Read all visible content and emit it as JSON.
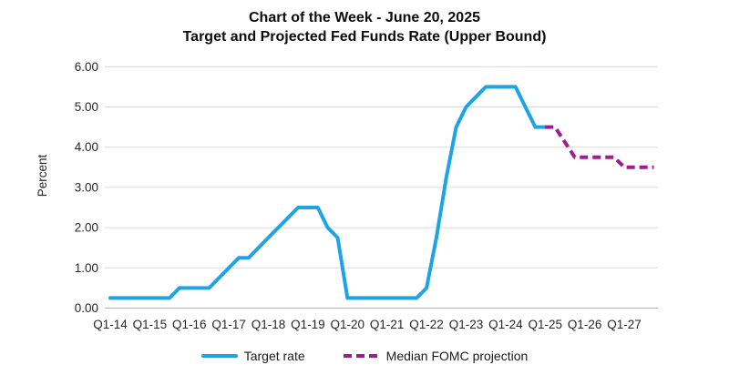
{
  "title": {
    "line1": "Chart of the Week - June 20, 2025",
    "line2": "Target and Projected Fed Funds Rate (Upper Bound)"
  },
  "y_axis": {
    "label": "Percent",
    "tick_labels": [
      "6.00",
      "5.00",
      "4.00",
      "3.00",
      "2.00",
      "1.00",
      "0.00"
    ]
  },
  "x_axis": {
    "tick_labels": [
      "Q1-14",
      "Q1-15",
      "Q1-16",
      "Q1-17",
      "Q1-18",
      "Q1-19",
      "Q1-20",
      "Q1-21",
      "Q1-22",
      "Q1-23",
      "Q1-24",
      "Q1-25",
      "Q1-26",
      "Q1-27"
    ]
  },
  "legend": [
    {
      "label": "Target rate",
      "style": "solid",
      "color": "#1ea3e6"
    },
    {
      "label": "Median FOMC projection",
      "style": "dashed",
      "color": "#9e1e8f"
    }
  ],
  "colors": {
    "grid": "#d9d9d9",
    "axis": "#b3b3b3",
    "tick_text": "#262626",
    "title_text": "#0d0d0d"
  },
  "chart_data": {
    "type": "line",
    "title": "Chart of the Week - June 20, 2025",
    "subtitle": "Target and Projected Fed Funds Rate (Upper Bound)",
    "ylabel": "Percent",
    "ylim": [
      0,
      6
    ],
    "y_ticks": [
      0,
      1,
      2,
      3,
      4,
      5,
      6
    ],
    "x_unit": "quarter",
    "x_tick_labels": [
      "Q1-14",
      "Q1-15",
      "Q1-16",
      "Q1-17",
      "Q1-18",
      "Q1-19",
      "Q1-20",
      "Q1-21",
      "Q1-22",
      "Q1-23",
      "Q1-24",
      "Q1-25",
      "Q1-26",
      "Q1-27"
    ],
    "grid": "horizontal",
    "legend_position": "bottom",
    "series": [
      {
        "name": "Target rate",
        "style": "solid",
        "color": "#1ea3e6",
        "start_quarter": "Q1-14",
        "values": [
          0.25,
          0.25,
          0.25,
          0.25,
          0.25,
          0.25,
          0.25,
          0.5,
          0.5,
          0.5,
          0.5,
          0.75,
          1.0,
          1.25,
          1.25,
          1.5,
          1.75,
          2.0,
          2.25,
          2.5,
          2.5,
          2.5,
          2.0,
          1.75,
          0.25,
          0.25,
          0.25,
          0.25,
          0.25,
          0.25,
          0.25,
          0.25,
          0.5,
          1.75,
          3.25,
          4.5,
          5.0,
          5.25,
          5.5,
          5.5,
          5.5,
          5.5,
          5.0,
          4.5,
          4.5
        ]
      },
      {
        "name": "Median FOMC projection",
        "style": "dashed",
        "color": "#9e1e8f",
        "start_quarter": "Q1-25",
        "values": [
          4.5,
          4.5,
          4.125,
          3.75,
          3.75,
          3.75,
          3.75,
          3.75,
          3.5,
          3.5,
          3.5,
          3.5
        ]
      }
    ]
  }
}
